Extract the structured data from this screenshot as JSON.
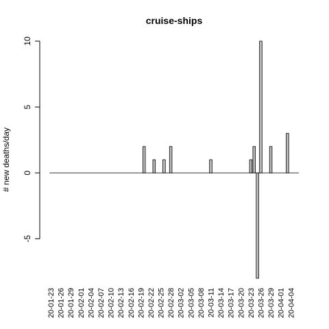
{
  "chart_data": {
    "type": "bar",
    "title": "cruise-ships",
    "xlabel": "",
    "ylabel": "# new deaths/day",
    "ylim": [
      -8,
      10
    ],
    "yticks": [
      -5,
      0,
      5,
      10
    ],
    "tick_labels": [
      "20-01-23",
      "20-01-26",
      "20-01-29",
      "20-02-01",
      "20-02-04",
      "20-02-07",
      "20-02-10",
      "20-02-13",
      "20-02-16",
      "20-02-19",
      "20-02-22",
      "20-02-25",
      "20-02-28",
      "20-03-02",
      "20-03-05",
      "20-03-08",
      "20-03-11",
      "20-03-14",
      "20-03-17",
      "20-03-20",
      "20-03-23",
      "20-03-26",
      "20-03-29",
      "20-04-01",
      "20-04-04"
    ],
    "categories": [
      "20-01-23",
      "20-01-24",
      "20-01-25",
      "20-01-26",
      "20-01-27",
      "20-01-28",
      "20-01-29",
      "20-01-30",
      "20-01-31",
      "20-02-01",
      "20-02-02",
      "20-02-03",
      "20-02-04",
      "20-02-05",
      "20-02-06",
      "20-02-07",
      "20-02-08",
      "20-02-09",
      "20-02-10",
      "20-02-11",
      "20-02-12",
      "20-02-13",
      "20-02-14",
      "20-02-15",
      "20-02-16",
      "20-02-17",
      "20-02-18",
      "20-02-19",
      "20-02-20",
      "20-02-21",
      "20-02-22",
      "20-02-23",
      "20-02-24",
      "20-02-25",
      "20-02-26",
      "20-02-27",
      "20-02-28",
      "20-02-29",
      "20-03-01",
      "20-03-02",
      "20-03-03",
      "20-03-04",
      "20-03-05",
      "20-03-06",
      "20-03-07",
      "20-03-08",
      "20-03-09",
      "20-03-10",
      "20-03-11",
      "20-03-12",
      "20-03-13",
      "20-03-14",
      "20-03-15",
      "20-03-16",
      "20-03-17",
      "20-03-18",
      "20-03-19",
      "20-03-20",
      "20-03-21",
      "20-03-22",
      "20-03-23",
      "20-03-24",
      "20-03-25",
      "20-03-26",
      "20-03-27",
      "20-03-28",
      "20-03-29",
      "20-03-30",
      "20-03-31",
      "20-04-01",
      "20-04-02",
      "20-04-03",
      "20-04-04",
      "20-04-05",
      "20-04-06"
    ],
    "values": [
      0,
      0,
      0,
      0,
      0,
      0,
      0,
      0,
      0,
      0,
      0,
      0,
      0,
      0,
      0,
      0,
      0,
      0,
      0,
      0,
      0,
      0,
      0,
      0,
      0,
      0,
      0,
      0,
      2,
      0,
      0,
      1,
      0,
      0,
      1,
      0,
      2,
      0,
      0,
      0,
      0,
      0,
      0,
      0,
      0,
      0,
      0,
      0,
      1,
      0,
      0,
      0,
      0,
      0,
      0,
      0,
      0,
      0,
      0,
      0,
      1,
      2,
      -8,
      10,
      0,
      0,
      2,
      0,
      0,
      0,
      0,
      3,
      0,
      0,
      0
    ],
    "bar_color": "#bebebe",
    "grid": false,
    "legend": "none"
  }
}
